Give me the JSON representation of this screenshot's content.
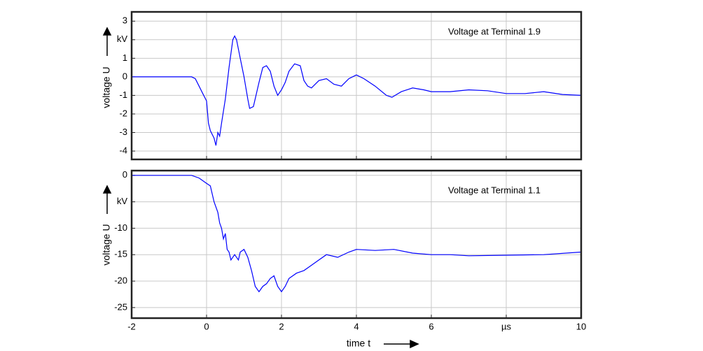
{
  "chart_data": [
    {
      "type": "line",
      "annotation": "Voltage at Terminal 1.9",
      "ylabel": "voltage U",
      "xlim": [
        -2,
        10
      ],
      "ylim": [
        -4.45,
        3.5
      ],
      "xticks": [
        -2,
        0,
        2,
        4,
        6,
        8,
        10
      ],
      "yticks": [
        3,
        {
          "value": 2,
          "label": "kV"
        },
        1,
        0,
        -1,
        -2,
        -3,
        -4
      ],
      "grid": true,
      "x": [
        -2,
        -1,
        -0.4,
        -0.3,
        -0.2,
        -0.1,
        0,
        0.05,
        0.1,
        0.2,
        0.25,
        0.3,
        0.35,
        0.4,
        0.5,
        0.6,
        0.7,
        0.75,
        0.8,
        0.9,
        1.0,
        1.1,
        1.15,
        1.25,
        1.4,
        1.5,
        1.6,
        1.7,
        1.8,
        1.9,
        2.0,
        2.1,
        2.2,
        2.35,
        2.5,
        2.6,
        2.7,
        2.8,
        3.0,
        3.2,
        3.4,
        3.6,
        3.8,
        4.0,
        4.2,
        4.5,
        4.8,
        4.95,
        5.2,
        5.5,
        5.8,
        6.0,
        6.5,
        7.0,
        7.5,
        8.0,
        8.5,
        9.0,
        9.5,
        10
      ],
      "series": [
        {
          "color": "#0000ff",
          "values": [
            0,
            0,
            0,
            -0.1,
            -0.5,
            -0.9,
            -1.3,
            -2.5,
            -2.9,
            -3.3,
            -3.7,
            -3.0,
            -3.2,
            -2.5,
            -1.2,
            0.5,
            2.0,
            2.2,
            2.0,
            1.0,
            0,
            -1.2,
            -1.7,
            -1.6,
            -0.3,
            0.5,
            0.6,
            0.3,
            -0.5,
            -1.0,
            -0.7,
            -0.3,
            0.3,
            0.7,
            0.6,
            -0.2,
            -0.5,
            -0.6,
            -0.2,
            -0.1,
            -0.4,
            -0.5,
            -0.1,
            0.1,
            -0.1,
            -0.5,
            -1.0,
            -1.1,
            -0.8,
            -0.6,
            -0.7,
            -0.8,
            -0.8,
            -0.7,
            -0.75,
            -0.9,
            -0.9,
            -0.8,
            -0.95,
            -1.0
          ]
        }
      ]
    },
    {
      "type": "line",
      "annotation": "Voltage at Terminal 1.1",
      "ylabel": "voltage U",
      "xlabel": "time t",
      "xlim": [
        -2,
        10
      ],
      "ylim": [
        -27,
        0.9
      ],
      "xticks": [
        -2,
        0,
        2,
        4,
        6,
        {
          "value": 8,
          "label": "µs"
        },
        10
      ],
      "yticks": [
        0,
        {
          "value": -5,
          "label": "kV"
        },
        -10,
        -15,
        -20,
        -25
      ],
      "grid": true,
      "x": [
        -2,
        -1,
        -0.4,
        -0.2,
        0,
        0.1,
        0.2,
        0.3,
        0.35,
        0.4,
        0.45,
        0.5,
        0.55,
        0.6,
        0.65,
        0.75,
        0.85,
        0.9,
        1.0,
        1.1,
        1.2,
        1.3,
        1.4,
        1.5,
        1.6,
        1.7,
        1.8,
        1.9,
        2.0,
        2.1,
        2.2,
        2.4,
        2.6,
        2.8,
        3.0,
        3.2,
        3.5,
        3.8,
        4.0,
        4.5,
        5.0,
        5.5,
        6.0,
        6.5,
        7.0,
        8.0,
        9.0,
        10
      ],
      "series": [
        {
          "color": "#0000ff",
          "values": [
            0,
            0,
            0,
            -0.5,
            -1.5,
            -2,
            -5,
            -7,
            -9,
            -10,
            -12,
            -11,
            -14,
            -14.5,
            -16,
            -15,
            -16,
            -14.5,
            -14,
            -15.5,
            -18,
            -21,
            -22,
            -21,
            -20.5,
            -19.5,
            -19,
            -21,
            -22,
            -21,
            -19.5,
            -18.5,
            -18,
            -17,
            -16,
            -15,
            -15.5,
            -14.5,
            -14,
            -14.2,
            -14,
            -14.7,
            -15,
            -15,
            -15.2,
            -15.1,
            -15,
            -14.5
          ]
        }
      ]
    }
  ]
}
